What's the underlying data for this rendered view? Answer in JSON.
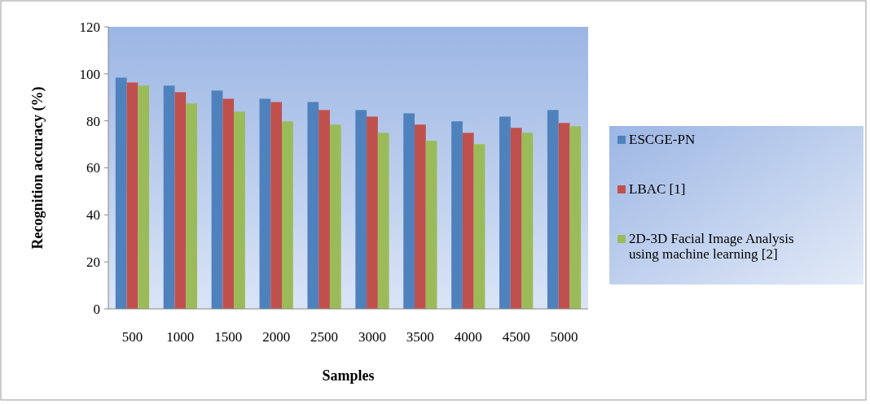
{
  "chart_data": {
    "type": "bar",
    "xlabel": "Samples",
    "ylabel": "Recognition accuracy (%)",
    "categories": [
      "500",
      "1000",
      "1500",
      "2000",
      "2500",
      "3000",
      "3500",
      "4000",
      "4500",
      "5000"
    ],
    "series": [
      {
        "name": "ESCGE-PN",
        "color": "#4f81bd",
        "values": [
          98.4,
          95,
          92.9,
          89.4,
          88,
          84.6,
          83.2,
          79.8,
          81.8,
          84.6
        ]
      },
      {
        "name": "LBAC [1]",
        "color": "#c0504d",
        "values": [
          96.3,
          92.2,
          89.4,
          88,
          84.6,
          81.8,
          78.4,
          74.9,
          77,
          79.1
        ]
      },
      {
        "name": "2D-3D Facial Image Analysis using machine learning [2]",
        "color": "#9bbb59",
        "values": [
          95,
          87.4,
          83.9,
          79.8,
          78.4,
          74.9,
          71.5,
          70.1,
          74.9,
          77.7
        ]
      }
    ],
    "ylim": [
      0,
      120
    ],
    "yticks": [
      0,
      20,
      40,
      60,
      80,
      100,
      120
    ],
    "grid": false,
    "legend": "right"
  }
}
